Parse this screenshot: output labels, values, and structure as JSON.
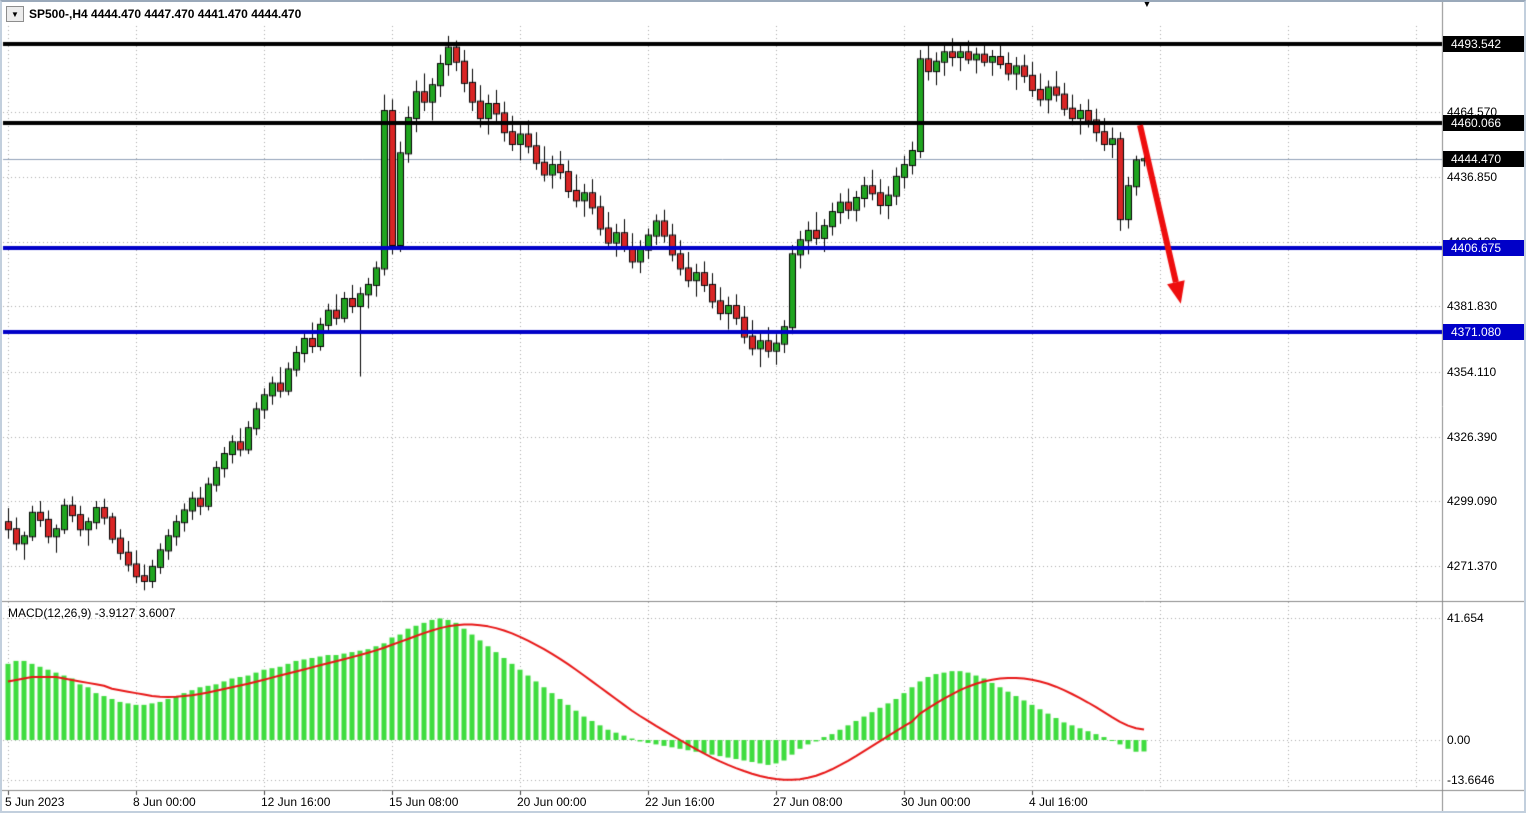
{
  "window": {
    "symbol_bar": {
      "dropdown_glyph": "▼",
      "text": "SP500-,H4 4444.470 4447.470 4441.470 4444.470"
    },
    "scroll_marker_glyph": "▼"
  },
  "chart_data": {
    "type": "candlestick",
    "symbol": "SP500-",
    "timeframe": "H4",
    "current_ohlc": {
      "open": "4444.470",
      "high": "4447.470",
      "low": "4441.470",
      "close": "4444.470"
    },
    "price_axis": {
      "grid_labels": [
        {
          "text": "4464.570",
          "value": 4464.57
        },
        {
          "text": "4436.850",
          "value": 4436.85
        },
        {
          "text": "4409.130",
          "value": 4409.13
        },
        {
          "text": "4381.830",
          "value": 4381.83
        },
        {
          "text": "4354.110",
          "value": 4354.11
        },
        {
          "text": "4326.390",
          "value": 4326.39
        },
        {
          "text": "4299.090",
          "value": 4299.09
        },
        {
          "text": "4271.370",
          "value": 4271.37
        }
      ]
    },
    "time_axis": {
      "labels": [
        {
          "text": "5 Jun 2023",
          "bar": 0
        },
        {
          "text": "8 Jun 00:00",
          "bar": 16
        },
        {
          "text": "12 Jun 16:00",
          "bar": 32
        },
        {
          "text": "15 Jun 08:00",
          "bar": 48
        },
        {
          "text": "20 Jun 00:00",
          "bar": 64
        },
        {
          "text": "22 Jun 16:00",
          "bar": 80
        },
        {
          "text": "27 Jun 08:00",
          "bar": 96
        },
        {
          "text": "30 Jun 00:00",
          "bar": 112
        },
        {
          "text": "4 Jul 16:00",
          "bar": 128
        }
      ]
    },
    "hlines": [
      {
        "value": 4493.542,
        "label": "4493.542",
        "color": "#000000",
        "badge_bg": "#000000",
        "width": 4
      },
      {
        "value": 4460.066,
        "label": "4460.066",
        "color": "#000000",
        "badge_bg": "#000000",
        "width": 4
      },
      {
        "value": 4406.675,
        "label": "4406.675",
        "color": "#0000c8",
        "badge_bg": "#0000c8",
        "width": 4
      },
      {
        "value": 4371.08,
        "label": "4371.080",
        "color": "#0000c8",
        "badge_bg": "#0000c8",
        "width": 4
      }
    ],
    "current_price_line": {
      "value": 4444.47,
      "label": "4444.470",
      "line_color": "#8fa0b8",
      "badge_bg": "#000000"
    },
    "annotations": {
      "arrow": {
        "from_bar": 141.5,
        "from_price": 4459,
        "to_bar": 146.6,
        "to_price": 4383,
        "color": "#ee0d0d",
        "width": 6
      }
    },
    "candles": [
      [
        4290,
        4296,
        4283,
        4287
      ],
      [
        4287,
        4292,
        4278,
        4281
      ],
      [
        4281,
        4286,
        4274,
        4284
      ],
      [
        4284,
        4297,
        4282,
        4294
      ],
      [
        4294,
        4299,
        4288,
        4291
      ],
      [
        4291,
        4295,
        4281,
        4284
      ],
      [
        4284,
        4289,
        4277,
        4287
      ],
      [
        4287,
        4300,
        4285,
        4297
      ],
      [
        4297,
        4301,
        4290,
        4293
      ],
      [
        4293,
        4297,
        4284,
        4287
      ],
      [
        4287,
        4292,
        4280,
        4290
      ],
      [
        4290,
        4299,
        4287,
        4296
      ],
      [
        4296,
        4300,
        4289,
        4292
      ],
      [
        4292,
        4294,
        4281,
        4283
      ],
      [
        4283,
        4287,
        4274,
        4277
      ],
      [
        4277,
        4282,
        4269,
        4272
      ],
      [
        4272,
        4278,
        4264,
        4267
      ],
      [
        4267,
        4272,
        4261,
        4265
      ],
      [
        4265,
        4274,
        4262,
        4271
      ],
      [
        4271,
        4281,
        4268,
        4278
      ],
      [
        4278,
        4287,
        4274,
        4284
      ],
      [
        4284,
        4293,
        4280,
        4290
      ],
      [
        4290,
        4298,
        4286,
        4295
      ],
      [
        4295,
        4303,
        4291,
        4300
      ],
      [
        4300,
        4305,
        4293,
        4297
      ],
      [
        4297,
        4309,
        4295,
        4306
      ],
      [
        4306,
        4316,
        4303,
        4313
      ],
      [
        4313,
        4322,
        4309,
        4319
      ],
      [
        4319,
        4327,
        4315,
        4324
      ],
      [
        4324,
        4330,
        4318,
        4321
      ],
      [
        4321,
        4333,
        4319,
        4330
      ],
      [
        4330,
        4341,
        4327,
        4338
      ],
      [
        4338,
        4347,
        4334,
        4344
      ],
      [
        4344,
        4352,
        4340,
        4349
      ],
      [
        4349,
        4356,
        4343,
        4346
      ],
      [
        4346,
        4358,
        4344,
        4355
      ],
      [
        4355,
        4365,
        4352,
        4362
      ],
      [
        4362,
        4371,
        4358,
        4368
      ],
      [
        4368,
        4375,
        4362,
        4365
      ],
      [
        4365,
        4377,
        4363,
        4374
      ],
      [
        4374,
        4383,
        4371,
        4380
      ],
      [
        4380,
        4387,
        4374,
        4377
      ],
      [
        4377,
        4388,
        4375,
        4385
      ],
      [
        4385,
        4391,
        4379,
        4382
      ],
      [
        4382,
        4390,
        4352,
        4387
      ],
      [
        4387,
        4394,
        4381,
        4391
      ],
      [
        4391,
        4401,
        4386,
        4398
      ],
      [
        4398,
        4472,
        4395,
        4465
      ],
      [
        4465,
        4470,
        4404,
        4408
      ],
      [
        4408,
        4452,
        4405,
        4447
      ],
      [
        4447,
        4467,
        4443,
        4462
      ],
      [
        4462,
        4478,
        4456,
        4473
      ],
      [
        4473,
        4481,
        4465,
        4469
      ],
      [
        4469,
        4479,
        4461,
        4476
      ],
      [
        4476,
        4489,
        4471,
        4485
      ],
      [
        4485,
        4497,
        4480,
        4492
      ],
      [
        4492,
        4495,
        4482,
        4486
      ],
      [
        4486,
        4491,
        4473,
        4477
      ],
      [
        4477,
        4483,
        4465,
        4469
      ],
      [
        4469,
        4476,
        4458,
        4462
      ],
      [
        4462,
        4472,
        4455,
        4468
      ],
      [
        4468,
        4474,
        4460,
        4464
      ],
      [
        4464,
        4469,
        4452,
        4456
      ],
      [
        4456,
        4463,
        4448,
        4451
      ],
      [
        4451,
        4459,
        4444,
        4455
      ],
      [
        4455,
        4461,
        4447,
        4450
      ],
      [
        4450,
        4456,
        4440,
        4443
      ],
      [
        4443,
        4450,
        4435,
        4438
      ],
      [
        4438,
        4446,
        4432,
        4442
      ],
      [
        4442,
        4448,
        4436,
        4439
      ],
      [
        4439,
        4444,
        4428,
        4431
      ],
      [
        4431,
        4438,
        4424,
        4427
      ],
      [
        4427,
        4434,
        4420,
        4430
      ],
      [
        4430,
        4436,
        4421,
        4424
      ],
      [
        4424,
        4429,
        4412,
        4415
      ],
      [
        4415,
        4422,
        4406,
        4409
      ],
      [
        4409,
        4417,
        4403,
        4413
      ],
      [
        4413,
        4419,
        4405,
        4407
      ],
      [
        4407,
        4413,
        4398,
        4401
      ],
      [
        4401,
        4410,
        4396,
        4406
      ],
      [
        4406,
        4415,
        4402,
        4412
      ],
      [
        4412,
        4421,
        4408,
        4418
      ],
      [
        4418,
        4423,
        4409,
        4412
      ],
      [
        4412,
        4417,
        4401,
        4404
      ],
      [
        4404,
        4410,
        4395,
        4398
      ],
      [
        4398,
        4405,
        4390,
        4393
      ],
      [
        4393,
        4400,
        4386,
        4396
      ],
      [
        4396,
        4401,
        4388,
        4391
      ],
      [
        4391,
        4396,
        4381,
        4384
      ],
      [
        4384,
        4390,
        4376,
        4379
      ],
      [
        4379,
        4386,
        4372,
        4382
      ],
      [
        4382,
        4387,
        4374,
        4377
      ],
      [
        4377,
        4382,
        4366,
        4369
      ],
      [
        4369,
        4376,
        4361,
        4364
      ],
      [
        4364,
        4371,
        4356,
        4367
      ],
      [
        4367,
        4373,
        4360,
        4363
      ],
      [
        4363,
        4370,
        4357,
        4366
      ],
      [
        4366,
        4376,
        4362,
        4373
      ],
      [
        4373,
        4408,
        4370,
        4404
      ],
      [
        4404,
        4414,
        4398,
        4410
      ],
      [
        4410,
        4418,
        4404,
        4414
      ],
      [
        4414,
        4422,
        4408,
        4411
      ],
      [
        4411,
        4419,
        4405,
        4416
      ],
      [
        4416,
        4426,
        4412,
        4422
      ],
      [
        4422,
        4430,
        4417,
        4426
      ],
      [
        4426,
        4432,
        4419,
        4423
      ],
      [
        4423,
        4431,
        4418,
        4428
      ],
      [
        4428,
        4437,
        4424,
        4433
      ],
      [
        4433,
        4440,
        4427,
        4430
      ],
      [
        4430,
        4436,
        4421,
        4425
      ],
      [
        4425,
        4433,
        4419,
        4429
      ],
      [
        4429,
        4441,
        4425,
        4437
      ],
      [
        4437,
        4446,
        4432,
        4442
      ],
      [
        4442,
        4452,
        4438,
        4448
      ],
      [
        4448,
        4491,
        4445,
        4487
      ],
      [
        4487,
        4493,
        4478,
        4482
      ],
      [
        4482,
        4490,
        4476,
        4486
      ],
      [
        4486,
        4494,
        4480,
        4490
      ],
      [
        4490,
        4496,
        4484,
        4488
      ],
      [
        4488,
        4493,
        4482,
        4490
      ],
      [
        4490,
        4495,
        4485,
        4487
      ],
      [
        4487,
        4492,
        4481,
        4489
      ],
      [
        4489,
        4494,
        4484,
        4486
      ],
      [
        4486,
        4491,
        4480,
        4488
      ],
      [
        4488,
        4493,
        4483,
        4485
      ],
      [
        4485,
        4490,
        4478,
        4481
      ],
      [
        4481,
        4488,
        4474,
        4484
      ],
      [
        4484,
        4489,
        4477,
        4480
      ],
      [
        4480,
        4486,
        4471,
        4474
      ],
      [
        4474,
        4481,
        4467,
        4470
      ],
      [
        4470,
        4478,
        4464,
        4475
      ],
      [
        4475,
        4482,
        4469,
        4472
      ],
      [
        4472,
        4477,
        4463,
        4466
      ],
      [
        4466,
        4472,
        4459,
        4462
      ],
      [
        4462,
        4468,
        4455,
        4465
      ],
      [
        4465,
        4470,
        4458,
        4461
      ],
      [
        4461,
        4466,
        4452,
        4456
      ],
      [
        4456,
        4462,
        4448,
        4451
      ],
      [
        4451,
        4458,
        4445,
        4453
      ],
      [
        4453,
        4456,
        4414,
        4419
      ],
      [
        4419,
        4437,
        4415,
        4433
      ],
      [
        4433,
        4446,
        4429,
        4444
      ],
      [
        4444.47,
        4447.47,
        4441.47,
        4444.47
      ]
    ],
    "macd": {
      "title": "MACD(12,26,9) -3.9127 3.6007",
      "params": "12,26,9",
      "main_value": -3.9127,
      "signal_value": 3.6007,
      "axis_labels": [
        {
          "text": "41.654",
          "value": 41.654
        },
        {
          "text": "0.00",
          "value": 0
        },
        {
          "text": "-13.6646",
          "value": -13.6646
        }
      ],
      "histogram": [
        26,
        27,
        27,
        26,
        25,
        24,
        23,
        22,
        21,
        19,
        18,
        16,
        15,
        14,
        13,
        12.5,
        12,
        12,
        12.5,
        13,
        14,
        15,
        16,
        17,
        18,
        18.5,
        19,
        20,
        21,
        21.5,
        22,
        23,
        24,
        24.5,
        25,
        26,
        27,
        27.5,
        28,
        28.5,
        29,
        29,
        29.5,
        30,
        30.5,
        31,
        32,
        33,
        35,
        36,
        38,
        39,
        40,
        41,
        41.5,
        41,
        40,
        38,
        36,
        34,
        32,
        30,
        28,
        26,
        24,
        22,
        20,
        18,
        16,
        14,
        12,
        10,
        8,
        6.5,
        5,
        3.5,
        2.5,
        1.5,
        0.5,
        -0.5,
        -1,
        -1.5,
        -2,
        -2.5,
        -3,
        -3.5,
        -4,
        -4.5,
        -5,
        -5.5,
        -6,
        -6.5,
        -7,
        -7.5,
        -8,
        -8.5,
        -8,
        -7,
        -5,
        -3,
        -1.5,
        -0.5,
        1,
        2,
        3.5,
        5,
        6.5,
        8,
        9.5,
        11,
        12.5,
        14,
        16,
        18,
        20,
        21.5,
        22.5,
        23,
        23.5,
        23.5,
        23,
        22,
        21,
        19.5,
        18,
        16.5,
        15,
        13.5,
        12,
        10.5,
        9,
        7.5,
        6,
        5,
        4,
        3,
        2,
        1,
        0,
        -1.5,
        -3,
        -4,
        -3.9127
      ],
      "signal": [
        20,
        20.5,
        21,
        21.5,
        21.5,
        21.5,
        21.5,
        21,
        20.5,
        20,
        19.5,
        19,
        18.5,
        17.5,
        17,
        16.5,
        16,
        15.5,
        15,
        14.8,
        14.7,
        14.8,
        15,
        15.3,
        15.7,
        16.2,
        16.8,
        17.4,
        18,
        18.6,
        19.2,
        19.9,
        20.6,
        21.3,
        22,
        22.7,
        23.4,
        24.1,
        24.8,
        25.5,
        26.2,
        26.9,
        27.6,
        28.3,
        29,
        29.8,
        30.6,
        31.5,
        32.5,
        33.5,
        34.5,
        35.5,
        36.5,
        37.4,
        38.2,
        38.8,
        39.2,
        39.4,
        39.4,
        39.2,
        38.8,
        38.2,
        37.4,
        36.4,
        35.2,
        33.9,
        32.5,
        31,
        29.4,
        27.7,
        25.9,
        24,
        22,
        20,
        18,
        16,
        14,
        12,
        10,
        8.2,
        6.5,
        4.8,
        3.2,
        1.6,
        0,
        -1.6,
        -3.1,
        -4.6,
        -6,
        -7.3,
        -8.5,
        -9.6,
        -10.6,
        -11.5,
        -12.3,
        -12.9,
        -13.3,
        -13.6,
        -13.6,
        -13.4,
        -12.9,
        -12.2,
        -11.2,
        -10,
        -8.6,
        -7.1,
        -5.5,
        -3.8,
        -2.1,
        -0.4,
        1.3,
        3,
        4.7,
        6.3,
        9,
        10.8,
        12.5,
        14.1,
        15.6,
        17,
        18.2,
        19.2,
        20,
        20.6,
        21,
        21.2,
        21.2,
        21,
        20.6,
        20,
        19.2,
        18.2,
        17,
        15.7,
        14.3,
        12.8,
        11.2,
        9.5,
        7.8,
        6.2,
        4.9,
        4,
        3.6007
      ]
    },
    "colors": {
      "background": "#ffffff",
      "grid": "#ababab",
      "bull": "#1fa51f",
      "bear": "#d92525",
      "candle_outline": "#000000",
      "macd_histogram": "#3fdc3f",
      "macd_signal": "#e81717",
      "separator": "#8a8a8a",
      "axis_text": "#000000"
    }
  }
}
